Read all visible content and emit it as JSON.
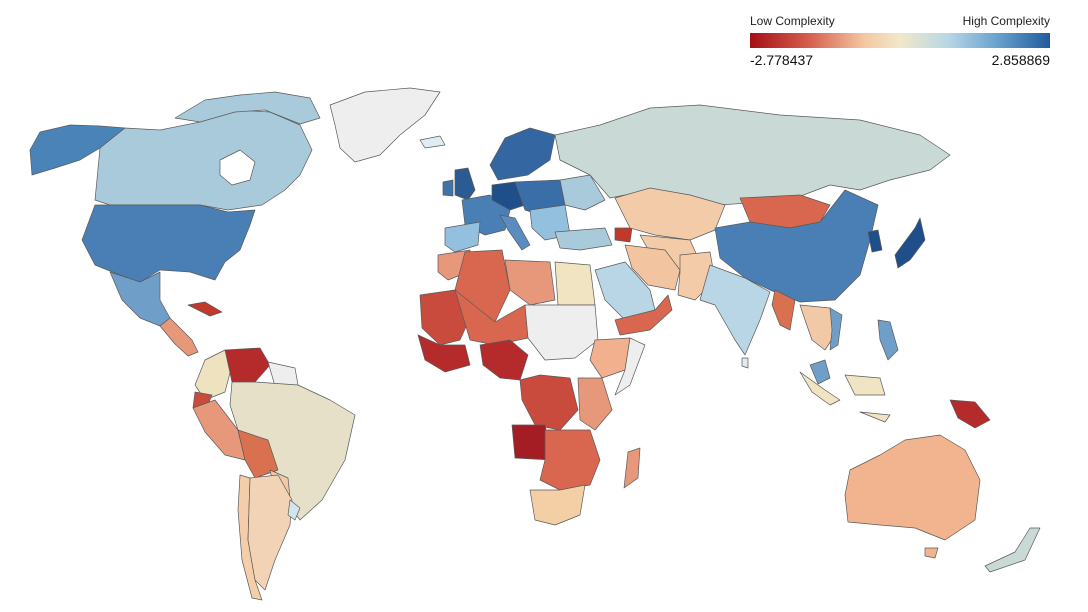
{
  "legend": {
    "low_label": "Low Complexity",
    "high_label": "High Complexity",
    "min_value": "-2.778437",
    "max_value": "2.858869",
    "colors": [
      "#a50f15",
      "#d6604d",
      "#f4c7a1",
      "#f1e8c8",
      "#d1e5f0",
      "#92c5de",
      "#2166ac"
    ]
  },
  "colors": {
    "no_data": "#eeeeee",
    "border": "#5a5a5a"
  }
}
